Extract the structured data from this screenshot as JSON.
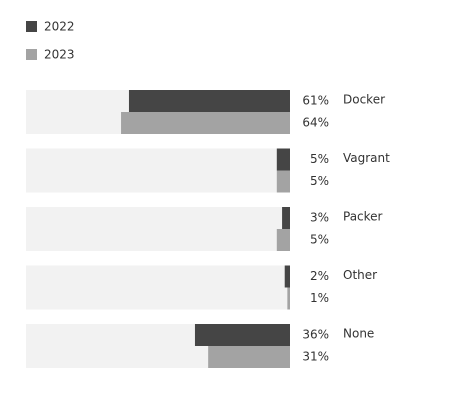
{
  "chart_data": {
    "type": "bar",
    "orientation": "horizontal",
    "direction": "right-to-left",
    "categories": [
      "Docker",
      "Vagrant",
      "Packer",
      "Other",
      "None"
    ],
    "series": [
      {
        "name": "2022",
        "color": "#454545",
        "values": [
          61,
          5,
          3,
          2,
          36
        ],
        "value_labels": [
          "61%",
          "5%",
          "3%",
          "2%",
          "36%"
        ]
      },
      {
        "name": "2023",
        "color": "#a3a3a3",
        "values": [
          64,
          5,
          5,
          1,
          31
        ],
        "value_labels": [
          "64%",
          "5%",
          "5%",
          "1%",
          "31%"
        ]
      }
    ],
    "xlim": [
      0,
      100
    ],
    "track_color": "#f2f2f2",
    "legend": "top-left"
  }
}
